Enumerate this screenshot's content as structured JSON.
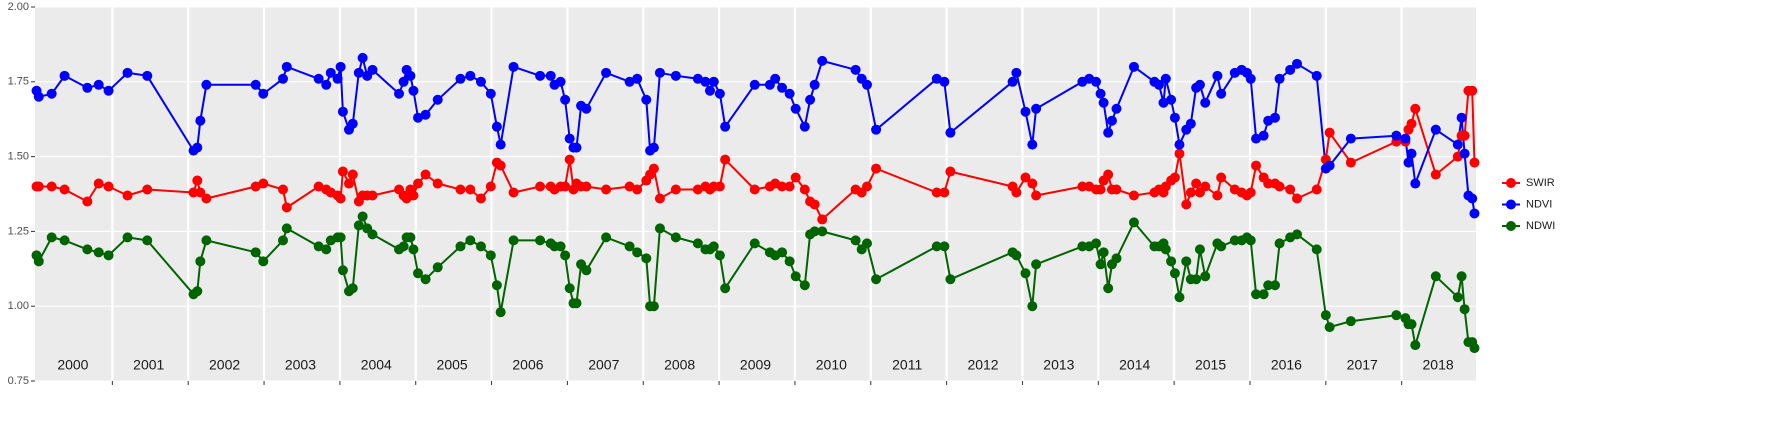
{
  "chart_data": {
    "type": "line",
    "x": [
      2000.0,
      2000.03,
      2000.2,
      2000.37,
      2000.67,
      2000.82,
      2000.95,
      2001.2,
      2001.46,
      2002.07,
      2002.12,
      2002.16,
      2002.24,
      2002.89,
      2002.99,
      2003.25,
      2003.3,
      2003.72,
      2003.82,
      2003.88,
      2003.97,
      2004.01,
      2004.04,
      2004.12,
      2004.17,
      2004.25,
      2004.3,
      2004.36,
      2004.43,
      2004.78,
      2004.84,
      2004.88,
      2004.93,
      2004.97,
      2005.03,
      2005.13,
      2005.29,
      2005.59,
      2005.72,
      2005.86,
      2005.99,
      2006.07,
      2006.12,
      2006.29,
      2006.64,
      2006.78,
      2006.83,
      2006.91,
      2006.97,
      2007.03,
      2007.08,
      2007.12,
      2007.18,
      2007.25,
      2007.51,
      2007.82,
      2007.92,
      2008.04,
      2008.09,
      2008.14,
      2008.22,
      2008.43,
      2008.72,
      2008.82,
      2008.88,
      2008.93,
      2009.01,
      2009.08,
      2009.47,
      2009.67,
      2009.74,
      2009.83,
      2009.93,
      2010.01,
      2010.13,
      2010.2,
      2010.26,
      2010.36,
      2010.8,
      2010.88,
      2010.95,
      2011.07,
      2011.87,
      2011.97,
      2012.05,
      2012.87,
      2012.92,
      2013.04,
      2013.13,
      2013.18,
      2013.79,
      2013.88,
      2013.97,
      2014.03,
      2014.07,
      2014.13,
      2014.18,
      2014.24,
      2014.47,
      2014.74,
      2014.8,
      2014.86,
      2014.89,
      2014.96,
      2015.01,
      2015.07,
      2015.16,
      2015.22,
      2015.29,
      2015.34,
      2015.41,
      2015.57,
      2015.62,
      2015.8,
      2015.89,
      2015.96,
      2016.01,
      2016.08,
      2016.18,
      2016.24,
      2016.33,
      2016.39,
      2016.53,
      2016.62,
      2016.88,
      2017.0,
      2017.05,
      2017.33,
      2017.93,
      2018.05,
      2018.09,
      2018.13,
      2018.18,
      2018.45,
      2018.74,
      2018.79,
      2018.83,
      2018.88,
      2018.93,
      2018.96
    ],
    "series": [
      {
        "name": "SWIR",
        "color": "#ff0000",
        "values": [
          1.4,
          1.4,
          1.4,
          1.39,
          1.35,
          1.41,
          1.4,
          1.37,
          1.39,
          1.38,
          1.42,
          1.38,
          1.36,
          1.4,
          1.41,
          1.39,
          1.33,
          1.4,
          1.39,
          1.38,
          1.37,
          1.36,
          1.45,
          1.41,
          1.44,
          1.35,
          1.37,
          1.37,
          1.37,
          1.39,
          1.37,
          1.36,
          1.39,
          1.37,
          1.41,
          1.44,
          1.41,
          1.39,
          1.39,
          1.36,
          1.4,
          1.48,
          1.47,
          1.38,
          1.4,
          1.4,
          1.39,
          1.4,
          1.4,
          1.49,
          1.39,
          1.41,
          1.4,
          1.4,
          1.39,
          1.4,
          1.39,
          1.42,
          1.44,
          1.46,
          1.36,
          1.39,
          1.39,
          1.4,
          1.39,
          1.4,
          1.4,
          1.49,
          1.39,
          1.4,
          1.41,
          1.4,
          1.4,
          1.43,
          1.39,
          1.35,
          1.34,
          1.29,
          1.39,
          1.38,
          1.4,
          1.46,
          1.38,
          1.38,
          1.45,
          1.4,
          1.38,
          1.43,
          1.41,
          1.37,
          1.4,
          1.4,
          1.39,
          1.39,
          1.42,
          1.44,
          1.39,
          1.39,
          1.37,
          1.38,
          1.39,
          1.38,
          1.4,
          1.42,
          1.43,
          1.51,
          1.34,
          1.38,
          1.41,
          1.38,
          1.4,
          1.37,
          1.43,
          1.39,
          1.38,
          1.37,
          1.38,
          1.47,
          1.43,
          1.41,
          1.41,
          1.4,
          1.39,
          1.36,
          1.39,
          1.49,
          1.58,
          1.48,
          1.55,
          1.55,
          1.59,
          1.61,
          1.66,
          1.44,
          1.5,
          1.57,
          1.57,
          1.72,
          1.72,
          1.48
        ]
      },
      {
        "name": "NDVI",
        "color": "#0000ff",
        "values": [
          1.72,
          1.7,
          1.71,
          1.77,
          1.73,
          1.74,
          1.72,
          1.78,
          1.77,
          1.52,
          1.53,
          1.62,
          1.74,
          1.74,
          1.71,
          1.76,
          1.8,
          1.76,
          1.74,
          1.78,
          1.76,
          1.8,
          1.65,
          1.59,
          1.61,
          1.78,
          1.83,
          1.77,
          1.79,
          1.71,
          1.75,
          1.79,
          1.77,
          1.72,
          1.63,
          1.64,
          1.69,
          1.76,
          1.77,
          1.75,
          1.71,
          1.6,
          1.54,
          1.8,
          1.77,
          1.77,
          1.74,
          1.75,
          1.69,
          1.56,
          1.53,
          1.53,
          1.67,
          1.66,
          1.78,
          1.75,
          1.76,
          1.69,
          1.52,
          1.53,
          1.78,
          1.77,
          1.76,
          1.75,
          1.72,
          1.75,
          1.71,
          1.6,
          1.74,
          1.74,
          1.76,
          1.73,
          1.71,
          1.66,
          1.6,
          1.69,
          1.74,
          1.82,
          1.79,
          1.76,
          1.74,
          1.59,
          1.76,
          1.75,
          1.58,
          1.75,
          1.78,
          1.65,
          1.54,
          1.66,
          1.75,
          1.76,
          1.75,
          1.71,
          1.68,
          1.58,
          1.62,
          1.66,
          1.8,
          1.75,
          1.74,
          1.68,
          1.76,
          1.69,
          1.63,
          1.54,
          1.59,
          1.61,
          1.73,
          1.74,
          1.68,
          1.77,
          1.71,
          1.78,
          1.79,
          1.78,
          1.76,
          1.56,
          1.57,
          1.62,
          1.63,
          1.76,
          1.79,
          1.81,
          1.77,
          1.46,
          1.47,
          1.56,
          1.57,
          1.56,
          1.48,
          1.51,
          1.41,
          1.59,
          1.54,
          1.63,
          1.51,
          1.37,
          1.36,
          1.31
        ]
      },
      {
        "name": "NDWI",
        "color": "#006400",
        "values": [
          1.17,
          1.15,
          1.23,
          1.22,
          1.19,
          1.18,
          1.17,
          1.23,
          1.22,
          1.04,
          1.05,
          1.15,
          1.22,
          1.18,
          1.15,
          1.22,
          1.26,
          1.2,
          1.19,
          1.22,
          1.23,
          1.23,
          1.12,
          1.05,
          1.06,
          1.27,
          1.3,
          1.26,
          1.24,
          1.19,
          1.2,
          1.23,
          1.23,
          1.19,
          1.11,
          1.09,
          1.13,
          1.2,
          1.22,
          1.2,
          1.17,
          1.07,
          0.98,
          1.22,
          1.22,
          1.21,
          1.2,
          1.2,
          1.17,
          1.06,
          1.01,
          1.01,
          1.14,
          1.12,
          1.23,
          1.2,
          1.18,
          1.16,
          1.0,
          1.0,
          1.26,
          1.23,
          1.21,
          1.19,
          1.19,
          1.2,
          1.17,
          1.06,
          1.21,
          1.18,
          1.17,
          1.18,
          1.15,
          1.1,
          1.07,
          1.24,
          1.25,
          1.25,
          1.22,
          1.19,
          1.21,
          1.09,
          1.2,
          1.2,
          1.09,
          1.18,
          1.17,
          1.11,
          1.0,
          1.14,
          1.2,
          1.2,
          1.21,
          1.14,
          1.18,
          1.06,
          1.14,
          1.16,
          1.28,
          1.2,
          1.2,
          1.21,
          1.19,
          1.15,
          1.11,
          1.03,
          1.15,
          1.09,
          1.09,
          1.19,
          1.1,
          1.21,
          1.2,
          1.22,
          1.22,
          1.23,
          1.22,
          1.04,
          1.04,
          1.07,
          1.07,
          1.21,
          1.23,
          1.24,
          1.19,
          0.97,
          0.93,
          0.95,
          0.97,
          0.96,
          0.94,
          0.94,
          0.87,
          1.1,
          1.03,
          1.1,
          0.99,
          0.88,
          0.88,
          0.86
        ]
      }
    ],
    "year_labels": [
      "2000",
      "2001",
      "2002",
      "2003",
      "2004",
      "2005",
      "2006",
      "2007",
      "2008",
      "2009",
      "2010",
      "2011",
      "2012",
      "2013",
      "2014",
      "2015",
      "2016",
      "2017",
      "2018"
    ],
    "xlim": [
      1999.98,
      2018.98
    ],
    "xticks": [
      2001,
      2002,
      2003,
      2004,
      2005,
      2006,
      2007,
      2008,
      2009,
      2010,
      2011,
      2012,
      2013,
      2014,
      2015,
      2016,
      2017,
      2018
    ],
    "ylim": [
      0.75,
      2.0
    ],
    "yticks": [
      {
        "value": 0.75,
        "label": "0.75"
      },
      {
        "value": 1.0,
        "label": "1.00"
      },
      {
        "value": 1.25,
        "label": "1.25"
      },
      {
        "value": 1.5,
        "label": "1.50"
      },
      {
        "value": 1.75,
        "label": "1.75"
      },
      {
        "value": 2.0,
        "label": "2.00"
      }
    ],
    "grid": true,
    "legend": "right"
  }
}
